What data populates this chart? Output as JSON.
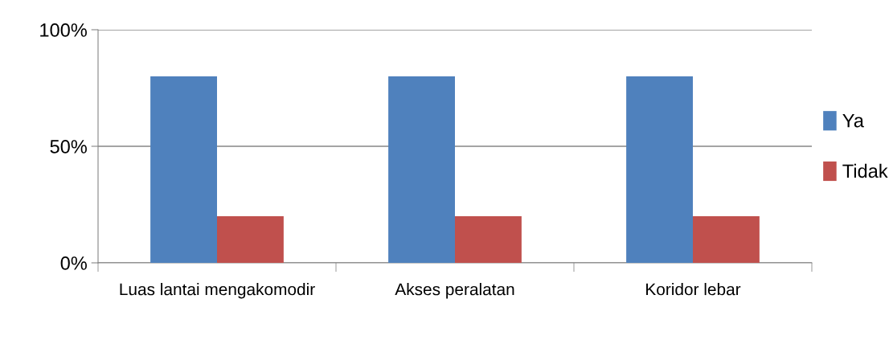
{
  "chart_data": {
    "type": "bar",
    "categories": [
      "Luas lantai mengakomodir",
      "Akses peralatan",
      "Koridor lebar"
    ],
    "series": [
      {
        "name": "Ya",
        "color": "#4f81bd",
        "values": [
          80,
          80,
          80
        ]
      },
      {
        "name": "Tidak",
        "color": "#c0504d",
        "values": [
          20,
          20,
          20
        ]
      }
    ],
    "ylim": [
      0,
      100
    ],
    "yticks": [
      {
        "value": 0,
        "label": "0%"
      },
      {
        "value": 50,
        "label": "50%"
      },
      {
        "value": 100,
        "label": "100%"
      }
    ],
    "grid": "y",
    "legend": "right"
  }
}
